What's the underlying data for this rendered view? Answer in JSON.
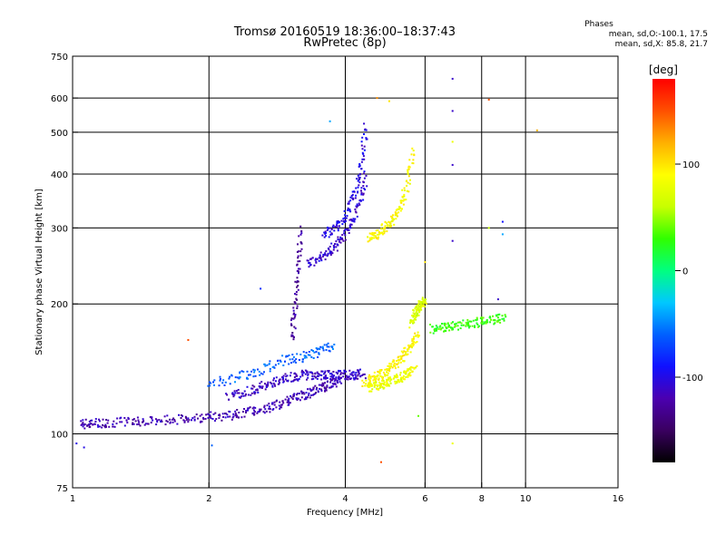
{
  "title_line1": "Tromsø 20160519 18:36:00–18:37:43",
  "title_line2": "RwPretec (8p)",
  "phases": {
    "title": "Phases",
    "o_stats": "mean, sd,O:-100.1, 17.5",
    "x_stats": "mean, sd,X:  85.8, 21.7"
  },
  "colorbar": {
    "label": "[deg]",
    "ticks": [
      {
        "value": 100,
        "label": "100"
      },
      {
        "value": 0,
        "label": "0"
      },
      {
        "value": -100,
        "label": "-100"
      }
    ],
    "range": [
      -180,
      180
    ],
    "colors": [
      "#000000",
      "#3a0060",
      "#4b00b0",
      "#1010ff",
      "#0060ff",
      "#00c8ff",
      "#00ff80",
      "#30ff00",
      "#c8ff00",
      "#ffff00",
      "#ffb000",
      "#ff5000",
      "#ff0000"
    ]
  },
  "chart_data": {
    "type": "scatter",
    "xlabel": "Frequency [MHz]",
    "ylabel": "Stationary phase Virtual Height [km]",
    "x_scale": "log",
    "y_scale": "log",
    "xlim": [
      1,
      16
    ],
    "ylim": [
      75,
      750
    ],
    "x_ticks": [
      {
        "value": 1,
        "label": "1"
      },
      {
        "value": 2,
        "label": "2"
      },
      {
        "value": 4,
        "label": "4"
      },
      {
        "value": 6,
        "label": "6"
      },
      {
        "value": 8,
        "label": "8"
      },
      {
        "value": 10,
        "label": "10"
      },
      {
        "value": 16,
        "label": "16"
      }
    ],
    "x_gridlines": [
      2,
      4,
      6,
      8,
      10
    ],
    "y_ticks": [
      {
        "value": 75,
        "label": "75"
      },
      {
        "value": 100,
        "label": "100"
      },
      {
        "value": 200,
        "label": "200"
      },
      {
        "value": 300,
        "label": "300"
      },
      {
        "value": 400,
        "label": "400"
      },
      {
        "value": 500,
        "label": "500"
      },
      {
        "value": 600,
        "label": "600"
      },
      {
        "value": 750,
        "label": "750"
      }
    ],
    "y_gridlines": [
      100,
      200,
      300,
      400,
      500,
      600
    ],
    "grid": true,
    "color_value": "phase [deg]",
    "traces": [
      {
        "x": [
          1.05,
          1.1,
          1.2,
          1.35,
          1.5,
          1.7,
          1.9,
          2.1,
          2.3,
          2.5,
          2.7,
          2.9,
          3.1,
          3.3,
          3.5,
          3.7,
          3.9
        ],
        "y": [
          105,
          106,
          106,
          107,
          107,
          108,
          109,
          110,
          111,
          113,
          115,
          118,
          121,
          124,
          127,
          130,
          132
        ],
        "phase": -118
      },
      {
        "x": [
          2.2,
          2.4,
          2.6,
          2.8,
          3.0,
          3.2,
          3.4,
          3.6,
          3.8,
          4.0,
          4.2,
          4.4
        ],
        "y": [
          122,
          125,
          128,
          132,
          135,
          137,
          137,
          137,
          137,
          137,
          137,
          138
        ],
        "phase": -112
      },
      {
        "x": [
          4.4,
          4.6,
          4.8,
          5.0,
          5.2,
          5.4,
          5.6,
          5.8
        ],
        "y": [
          132,
          134,
          137,
          141,
          146,
          152,
          160,
          170
        ],
        "phase": 92
      },
      {
        "x": [
          4.5,
          4.7,
          4.9,
          5.1,
          5.3,
          5.5,
          5.7
        ],
        "y": [
          128,
          129,
          131,
          133,
          135,
          138,
          141
        ],
        "phase": 80
      },
      {
        "x": [
          3.3,
          3.5,
          3.7,
          3.9,
          4.1,
          4.3,
          4.45
        ],
        "y": [
          248,
          255,
          265,
          280,
          300,
          340,
          400
        ],
        "phase": -108
      },
      {
        "x": [
          3.6,
          3.8,
          4.0,
          4.2,
          4.35,
          4.45
        ],
        "y": [
          290,
          300,
          320,
          360,
          420,
          520
        ],
        "phase": -102
      },
      {
        "x": [
          4.5,
          4.7,
          4.9,
          5.1,
          5.3,
          5.5,
          5.65
        ],
        "y": [
          285,
          290,
          300,
          315,
          335,
          380,
          460
        ],
        "phase": 88
      },
      {
        "x": [
          3.05,
          3.1,
          3.15,
          3.2
        ],
        "y": [
          165,
          195,
          240,
          300
        ],
        "phase": -125
      },
      {
        "x": [
          5.6,
          5.7,
          5.8,
          5.9,
          6.0
        ],
        "y": [
          180,
          190,
          195,
          200,
          205
        ],
        "phase": 70
      },
      {
        "x": [
          6.2,
          6.6,
          7.0,
          7.5,
          8.0,
          8.5,
          9.0
        ],
        "y": [
          175,
          176,
          178,
          180,
          182,
          184,
          186
        ],
        "phase": 30
      },
      {
        "x": [
          2.0,
          2.3,
          2.6,
          2.9,
          3.2,
          3.5,
          3.8
        ],
        "y": [
          130,
          135,
          140,
          148,
          150,
          155,
          160
        ],
        "phase": -60
      }
    ],
    "scatter_points": [
      {
        "x": 6.9,
        "y": 665,
        "phase": -110
      },
      {
        "x": 6.9,
        "y": 560,
        "phase": -110
      },
      {
        "x": 6.9,
        "y": 475,
        "phase": 80
      },
      {
        "x": 6.9,
        "y": 420,
        "phase": -110
      },
      {
        "x": 6.9,
        "y": 280,
        "phase": -110
      },
      {
        "x": 6.9,
        "y": 95,
        "phase": 80
      },
      {
        "x": 8.3,
        "y": 595,
        "phase": 150
      },
      {
        "x": 8.3,
        "y": 300,
        "phase": 60
      },
      {
        "x": 8.9,
        "y": 310,
        "phase": -90
      },
      {
        "x": 8.9,
        "y": 290,
        "phase": -40
      },
      {
        "x": 8.7,
        "y": 205,
        "phase": -110
      },
      {
        "x": 10.6,
        "y": 505,
        "phase": 120
      },
      {
        "x": 4.7,
        "y": 600,
        "phase": 130
      },
      {
        "x": 5.0,
        "y": 590,
        "phase": 100
      },
      {
        "x": 4.8,
        "y": 86,
        "phase": 150
      },
      {
        "x": 5.8,
        "y": 110,
        "phase": 40
      },
      {
        "x": 1.02,
        "y": 95,
        "phase": -100
      },
      {
        "x": 1.06,
        "y": 93,
        "phase": -100
      },
      {
        "x": 2.03,
        "y": 94,
        "phase": -60
      },
      {
        "x": 1.8,
        "y": 165,
        "phase": 150
      },
      {
        "x": 2.6,
        "y": 217,
        "phase": -80
      },
      {
        "x": 3.7,
        "y": 530,
        "phase": -40
      },
      {
        "x": 6.0,
        "y": 250,
        "phase": 100
      }
    ]
  }
}
